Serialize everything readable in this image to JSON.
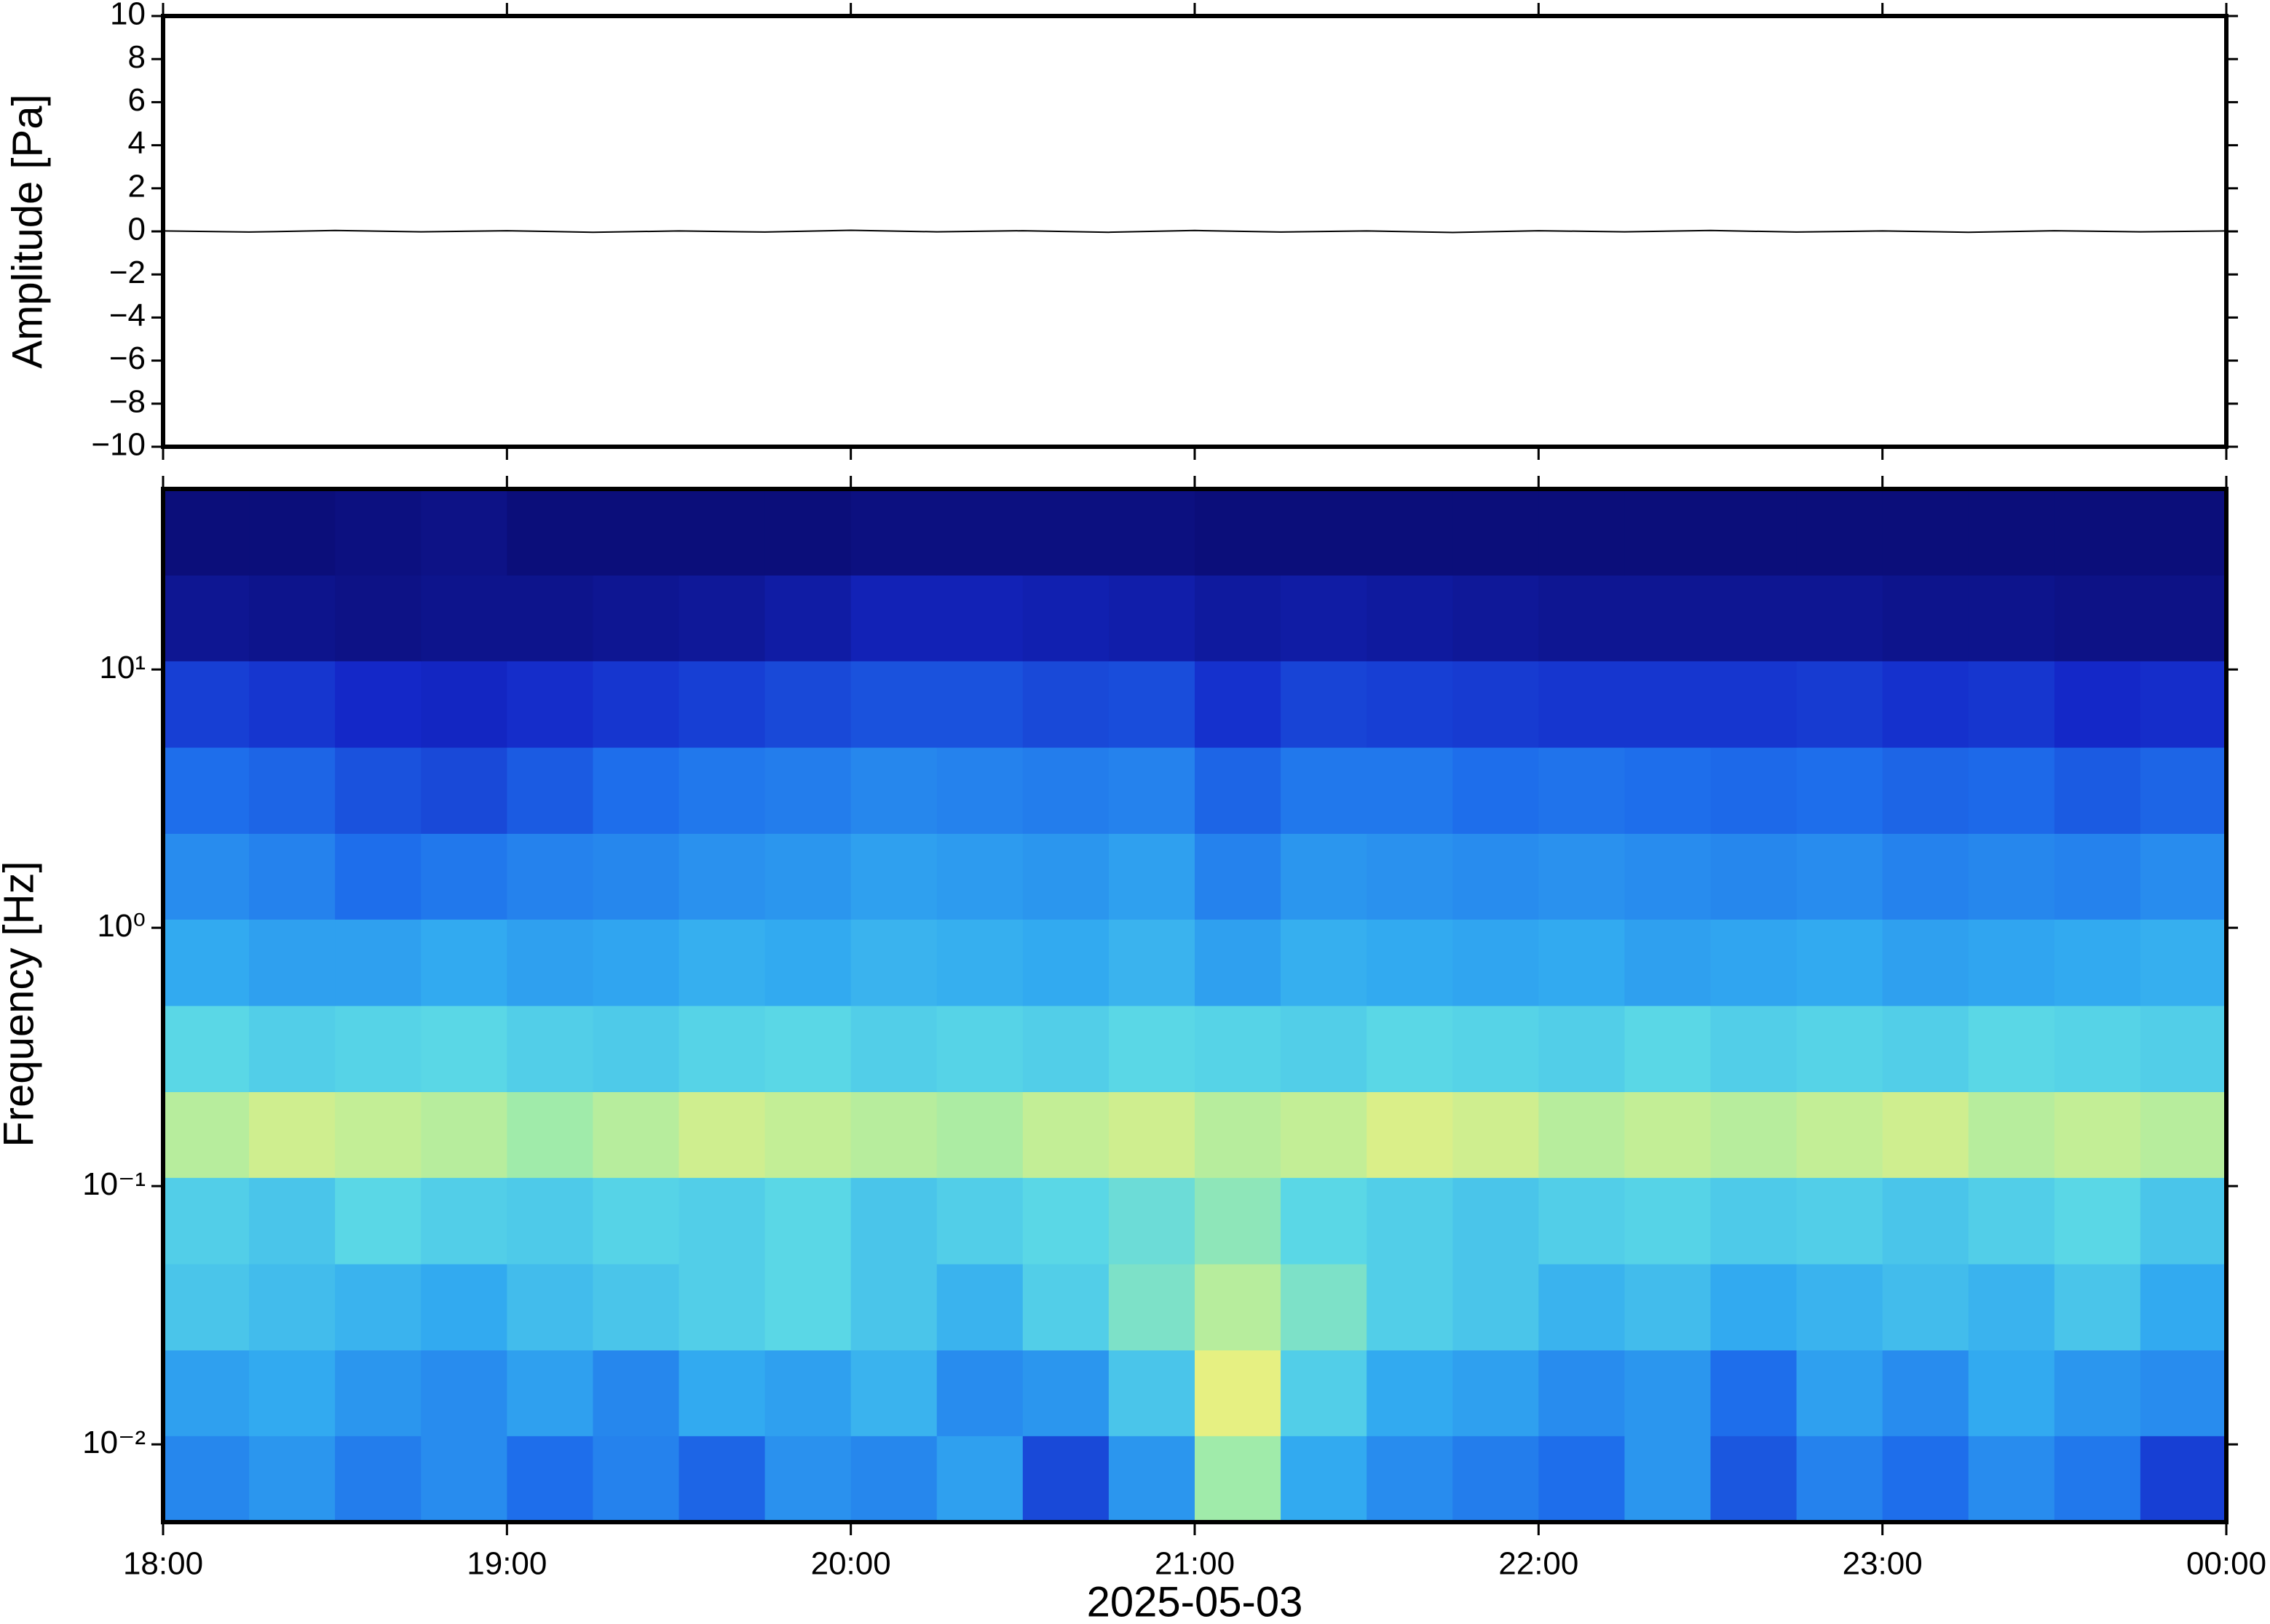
{
  "chart_data": [
    {
      "type": "line",
      "ylabel": "Amplitude [Pa]",
      "x": [
        18,
        18.25,
        18.5,
        18.75,
        19,
        19.25,
        19.5,
        19.75,
        20,
        20.25,
        20.5,
        20.75,
        21,
        21.25,
        21.5,
        21.75,
        22,
        22.25,
        22.5,
        22.75,
        23,
        23.25,
        23.5,
        23.75,
        24
      ],
      "series": [
        {
          "color": "#000000",
          "values": [
            0.02,
            -0.03,
            0.04,
            -0.02,
            0.03,
            -0.04,
            0.02,
            -0.03,
            0.05,
            -0.02,
            0.03,
            -0.04,
            0.04,
            -0.03,
            0.02,
            -0.05,
            0.03,
            -0.02,
            0.04,
            -0.03,
            0.02,
            -0.04,
            0.03,
            -0.02,
            0.02
          ]
        }
      ],
      "xlim": [
        18,
        24
      ],
      "xticks": [
        18,
        19,
        20,
        21,
        22,
        23,
        24
      ],
      "ylim": [
        -10,
        10
      ],
      "yticks": [
        {
          "value": -10,
          "label": "−10"
        },
        {
          "value": -8,
          "label": "−8"
        },
        {
          "value": -6,
          "label": "−6"
        },
        {
          "value": -4,
          "label": "−4"
        },
        {
          "value": -2,
          "label": "−2"
        },
        0,
        2,
        4,
        6,
        8,
        10
      ]
    },
    {
      "type": "heatmap",
      "ylabel": "Frequency [Hz]",
      "xlabel": "2025-05-03",
      "log_y": true,
      "colormap": "jet",
      "x": [
        18,
        18.25,
        18.5,
        18.75,
        19,
        19.25,
        19.5,
        19.75,
        20,
        20.25,
        20.5,
        20.75,
        21,
        21.25,
        21.5,
        21.75,
        22,
        22.25,
        22.5,
        22.75,
        23,
        23.25,
        23.5,
        23.75,
        24
      ],
      "y": [
        0.005,
        0.0108,
        0.0232,
        0.05,
        0.108,
        0.232,
        0.5,
        1.08,
        2.32,
        5,
        10.8,
        23.2,
        50
      ],
      "zlim": [
        0,
        1
      ],
      "z": [
        [
          0.35,
          0.38,
          0.33,
          0.36,
          0.3,
          0.34,
          0.28,
          0.37,
          0.35,
          0.4,
          0.22,
          0.38,
          0.6,
          0.42,
          0.36,
          0.33,
          0.3,
          0.38,
          0.25,
          0.34,
          0.3,
          0.36,
          0.32,
          0.2
        ],
        [
          0.4,
          0.42,
          0.38,
          0.36,
          0.4,
          0.35,
          0.42,
          0.4,
          0.44,
          0.36,
          0.38,
          0.48,
          0.66,
          0.5,
          0.42,
          0.4,
          0.36,
          0.38,
          0.3,
          0.4,
          0.36,
          0.42,
          0.38,
          0.36
        ],
        [
          0.48,
          0.46,
          0.44,
          0.42,
          0.46,
          0.48,
          0.5,
          0.52,
          0.48,
          0.44,
          0.5,
          0.56,
          0.62,
          0.56,
          0.5,
          0.48,
          0.44,
          0.46,
          0.42,
          0.44,
          0.46,
          0.44,
          0.48,
          0.42
        ],
        [
          0.5,
          0.48,
          0.52,
          0.5,
          0.49,
          0.51,
          0.5,
          0.52,
          0.48,
          0.5,
          0.52,
          0.54,
          0.58,
          0.52,
          0.5,
          0.48,
          0.5,
          0.51,
          0.49,
          0.5,
          0.48,
          0.5,
          0.52,
          0.48
        ],
        [
          0.62,
          0.64,
          0.63,
          0.62,
          0.6,
          0.62,
          0.64,
          0.63,
          0.62,
          0.61,
          0.63,
          0.64,
          0.62,
          0.63,
          0.65,
          0.64,
          0.62,
          0.63,
          0.62,
          0.63,
          0.64,
          0.62,
          0.63,
          0.62
        ],
        [
          0.52,
          0.5,
          0.51,
          0.52,
          0.5,
          0.49,
          0.51,
          0.52,
          0.5,
          0.51,
          0.5,
          0.52,
          0.51,
          0.5,
          0.52,
          0.51,
          0.5,
          0.52,
          0.5,
          0.51,
          0.5,
          0.52,
          0.51,
          0.5
        ],
        [
          0.42,
          0.4,
          0.4,
          0.42,
          0.4,
          0.41,
          0.43,
          0.42,
          0.44,
          0.43,
          0.42,
          0.44,
          0.4,
          0.43,
          0.42,
          0.41,
          0.42,
          0.4,
          0.41,
          0.42,
          0.4,
          0.41,
          0.42,
          0.43
        ],
        [
          0.36,
          0.34,
          0.3,
          0.32,
          0.34,
          0.35,
          0.37,
          0.38,
          0.4,
          0.39,
          0.38,
          0.4,
          0.34,
          0.38,
          0.37,
          0.36,
          0.37,
          0.36,
          0.35,
          0.36,
          0.34,
          0.35,
          0.34,
          0.36
        ],
        [
          0.3,
          0.28,
          0.24,
          0.22,
          0.26,
          0.3,
          0.32,
          0.33,
          0.35,
          0.34,
          0.33,
          0.34,
          0.28,
          0.32,
          0.32,
          0.3,
          0.31,
          0.3,
          0.29,
          0.3,
          0.28,
          0.29,
          0.26,
          0.28
        ],
        [
          0.2,
          0.18,
          0.15,
          0.14,
          0.16,
          0.18,
          0.2,
          0.22,
          0.24,
          0.24,
          0.22,
          0.23,
          0.17,
          0.21,
          0.2,
          0.19,
          0.18,
          0.18,
          0.18,
          0.19,
          0.17,
          0.18,
          0.15,
          0.16
        ],
        [
          0.06,
          0.05,
          0.04,
          0.05,
          0.05,
          0.06,
          0.07,
          0.09,
          0.12,
          0.12,
          0.11,
          0.1,
          0.08,
          0.09,
          0.08,
          0.07,
          0.06,
          0.06,
          0.06,
          0.06,
          0.05,
          0.05,
          0.04,
          0.04
        ],
        [
          0.02,
          0.02,
          0.03,
          0.04,
          0.02,
          0.02,
          0.02,
          0.02,
          0.03,
          0.03,
          0.03,
          0.03,
          0.02,
          0.02,
          0.02,
          0.02,
          0.02,
          0.02,
          0.02,
          0.02,
          0.02,
          0.02,
          0.02,
          0.02
        ]
      ],
      "xlim": [
        18,
        24
      ],
      "xticks": [
        {
          "value": 18,
          "label": "18:00"
        },
        {
          "value": 19,
          "label": "19:00"
        },
        {
          "value": 20,
          "label": "20:00"
        },
        {
          "value": 21,
          "label": "21:00"
        },
        {
          "value": 22,
          "label": "22:00"
        },
        {
          "value": 23,
          "label": "23:00"
        },
        {
          "value": 24,
          "label": "00:00"
        }
      ],
      "ylim": [
        0.005,
        50
      ],
      "yticks": [
        {
          "value": 0.01,
          "label": "10⁻²"
        },
        {
          "value": 0.1,
          "label": "10⁻¹"
        },
        {
          "value": 1,
          "label": "10⁰"
        },
        {
          "value": 10,
          "label": "10¹"
        }
      ]
    }
  ]
}
